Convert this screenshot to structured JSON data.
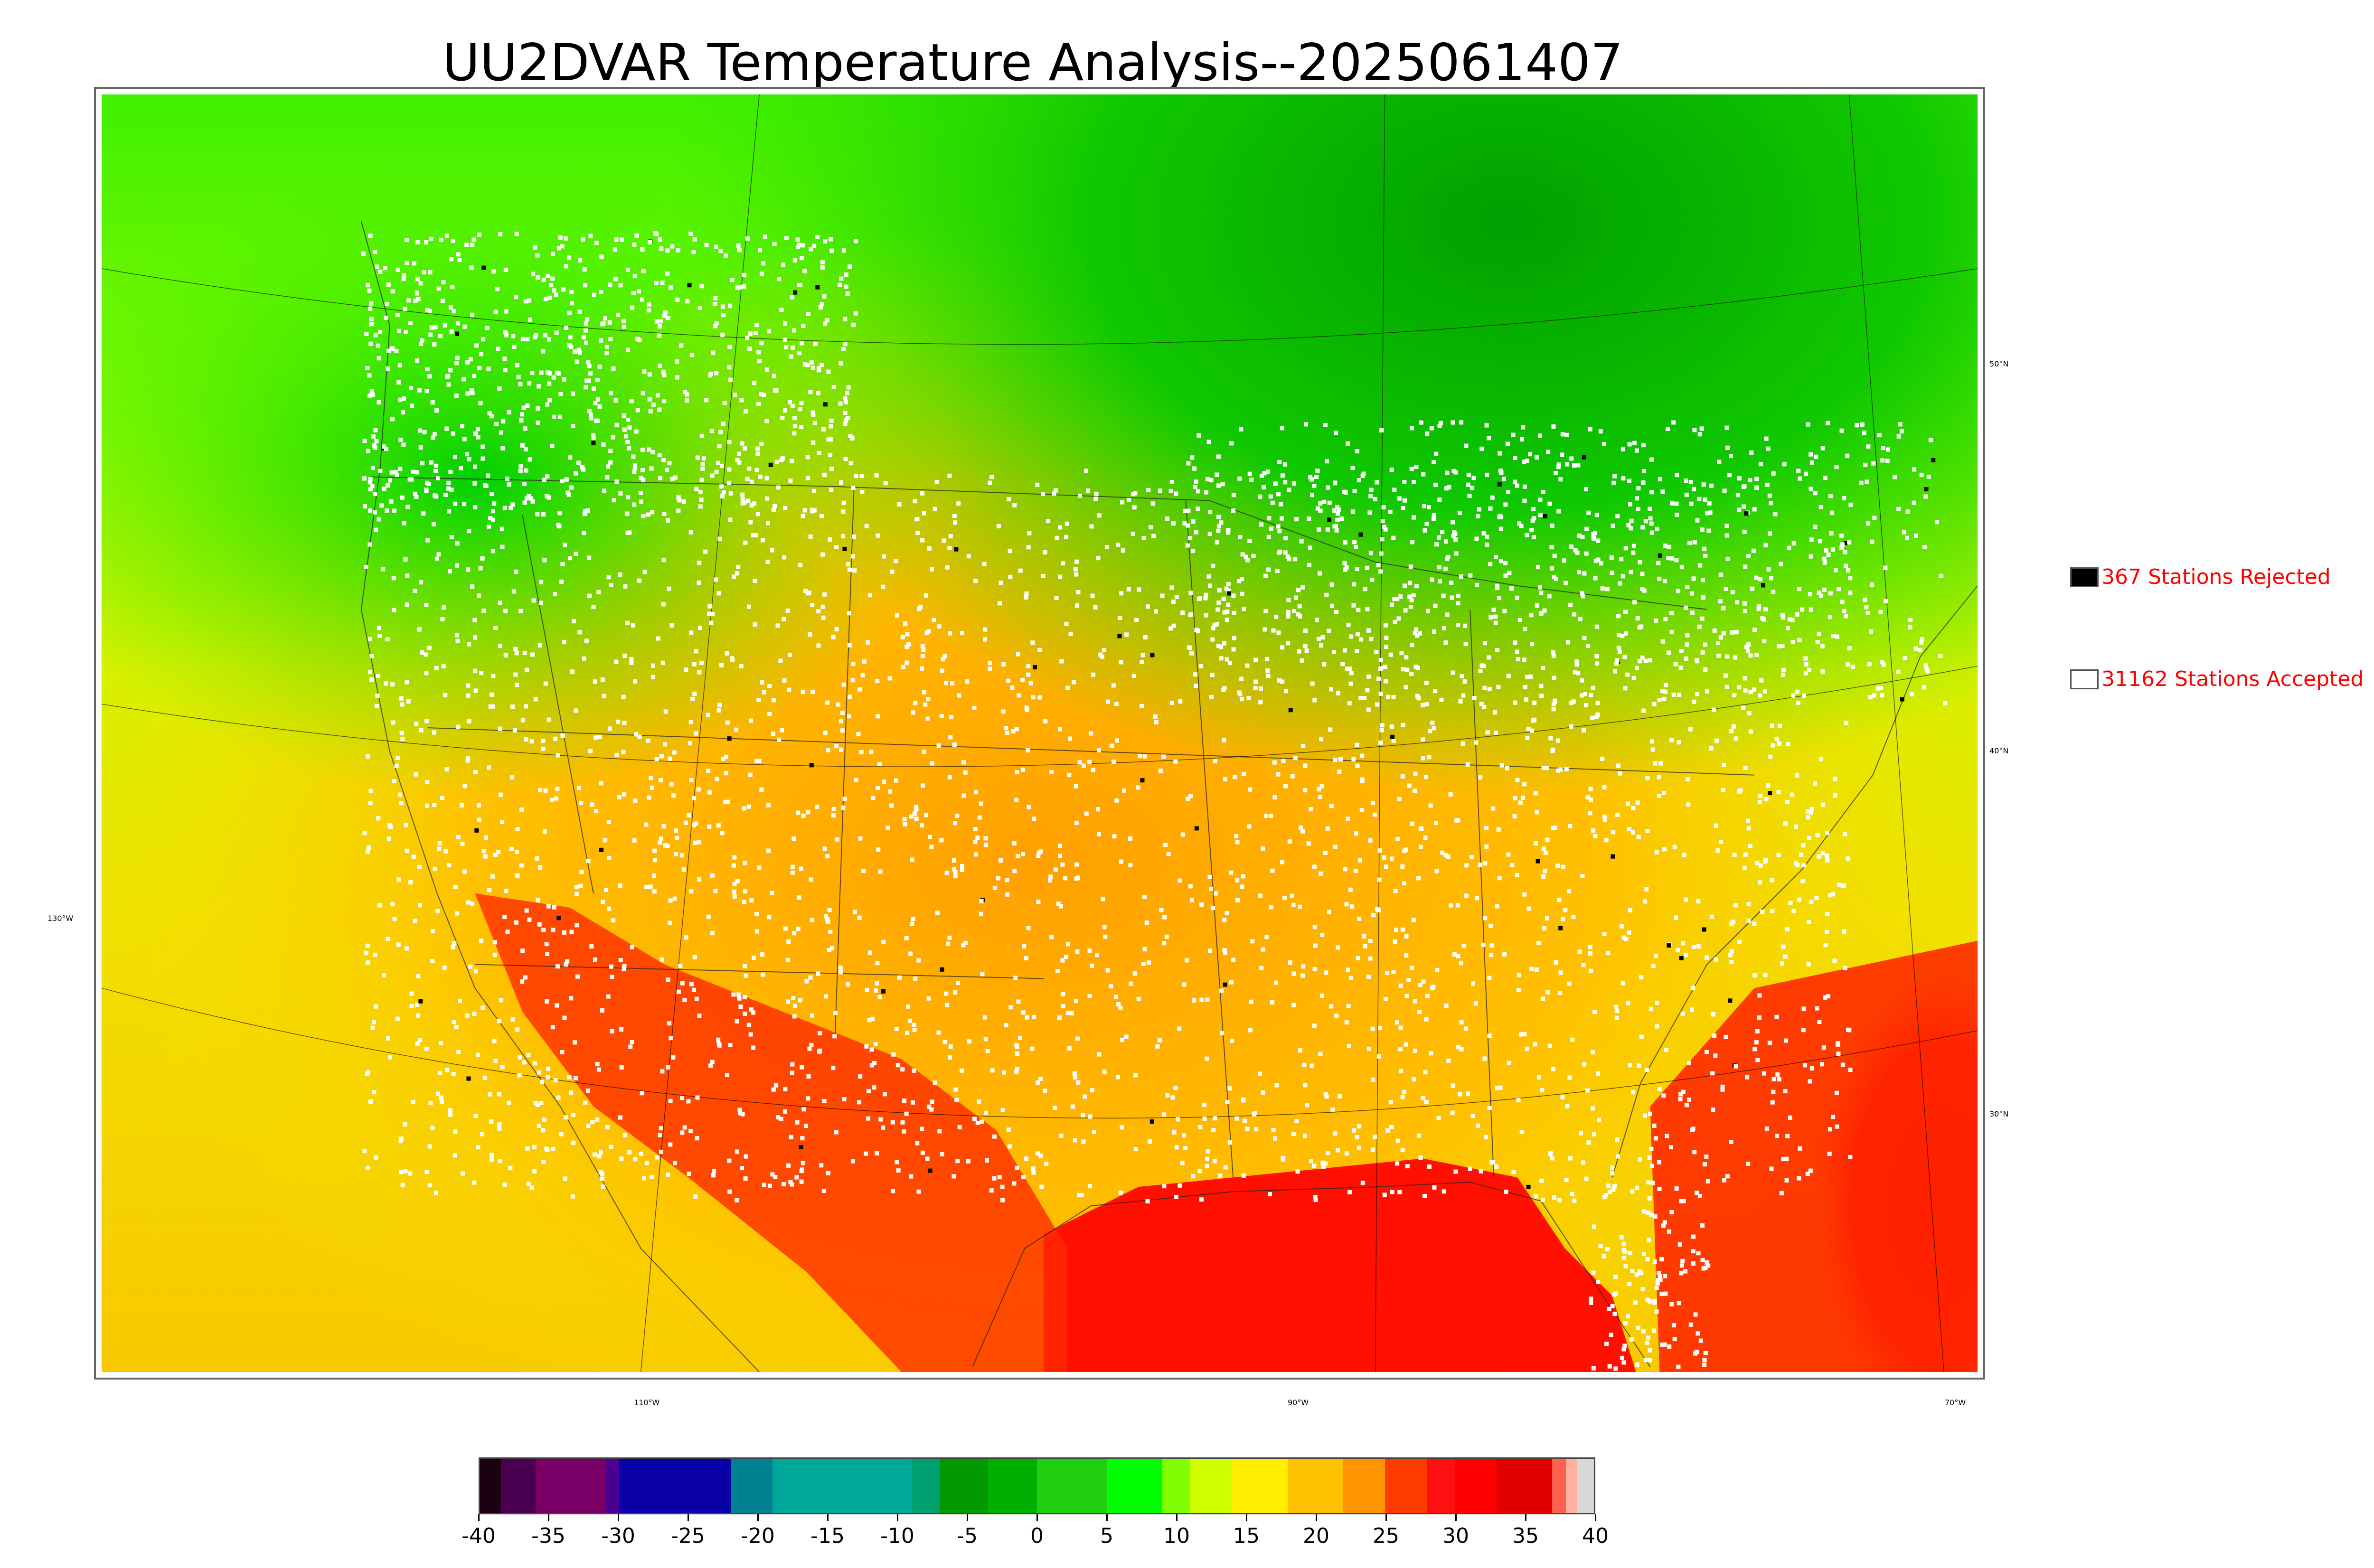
{
  "title": "UU2DVAR Temperature Analysis--2025061407",
  "legend": {
    "rejected": {
      "label": "367 Stations Rejected",
      "swatch_color": "#000000"
    },
    "accepted": {
      "label": "31162 Stations Accepted",
      "swatch_color": "#ffffff"
    },
    "text_color": "#ff0000"
  },
  "lat_labels": [
    "50°N",
    "40°N",
    "30°N"
  ],
  "lon_labels": [
    "130°W",
    "110°W",
    "90°W",
    "70°W"
  ],
  "colorbar": {
    "ticks": [
      "-40",
      "-35",
      "-30",
      "-25",
      "-20",
      "-15",
      "-10",
      "-5",
      "0",
      "5",
      "10",
      "15",
      "20",
      "25",
      "30",
      "35",
      "40"
    ],
    "min": -40,
    "max": 40,
    "bands": [
      {
        "from": -40,
        "to": -38.5,
        "color": "#1a0010"
      },
      {
        "from": -38.5,
        "to": -36,
        "color": "#4a0050"
      },
      {
        "from": -36,
        "to": -31,
        "color": "#7a0068"
      },
      {
        "from": -31,
        "to": -30,
        "color": "#4a0090"
      },
      {
        "from": -30,
        "to": -22,
        "color": "#0a00a8"
      },
      {
        "from": -22,
        "to": -19,
        "color": "#008090"
      },
      {
        "from": -19,
        "to": -9,
        "color": "#00a898"
      },
      {
        "from": -9,
        "to": -7,
        "color": "#00a070"
      },
      {
        "from": -7,
        "to": -3.5,
        "color": "#009a00"
      },
      {
        "from": -3.5,
        "to": 0,
        "color": "#00b000"
      },
      {
        "from": 0,
        "to": 5,
        "color": "#20d010"
      },
      {
        "from": 5,
        "to": 9,
        "color": "#00ff00"
      },
      {
        "from": 9,
        "to": 11,
        "color": "#80ff00"
      },
      {
        "from": 11,
        "to": 14,
        "color": "#d0ff00"
      },
      {
        "from": 14,
        "to": 18,
        "color": "#ffee00"
      },
      {
        "from": 18,
        "to": 22,
        "color": "#ffc000"
      },
      {
        "from": 22,
        "to": 25,
        "color": "#ff9600"
      },
      {
        "from": 25,
        "to": 28,
        "color": "#ff3c00"
      },
      {
        "from": 28,
        "to": 30,
        "color": "#ff1010"
      },
      {
        "from": 30,
        "to": 33,
        "color": "#ff0000"
      },
      {
        "from": 33,
        "to": 37,
        "color": "#e00000"
      },
      {
        "from": 37,
        "to": 38,
        "color": "#ff6050"
      },
      {
        "from": 38,
        "to": 38.8,
        "color": "#ffb0a0"
      },
      {
        "from": 38.8,
        "to": 40,
        "color": "#d8d8d8"
      }
    ]
  }
}
